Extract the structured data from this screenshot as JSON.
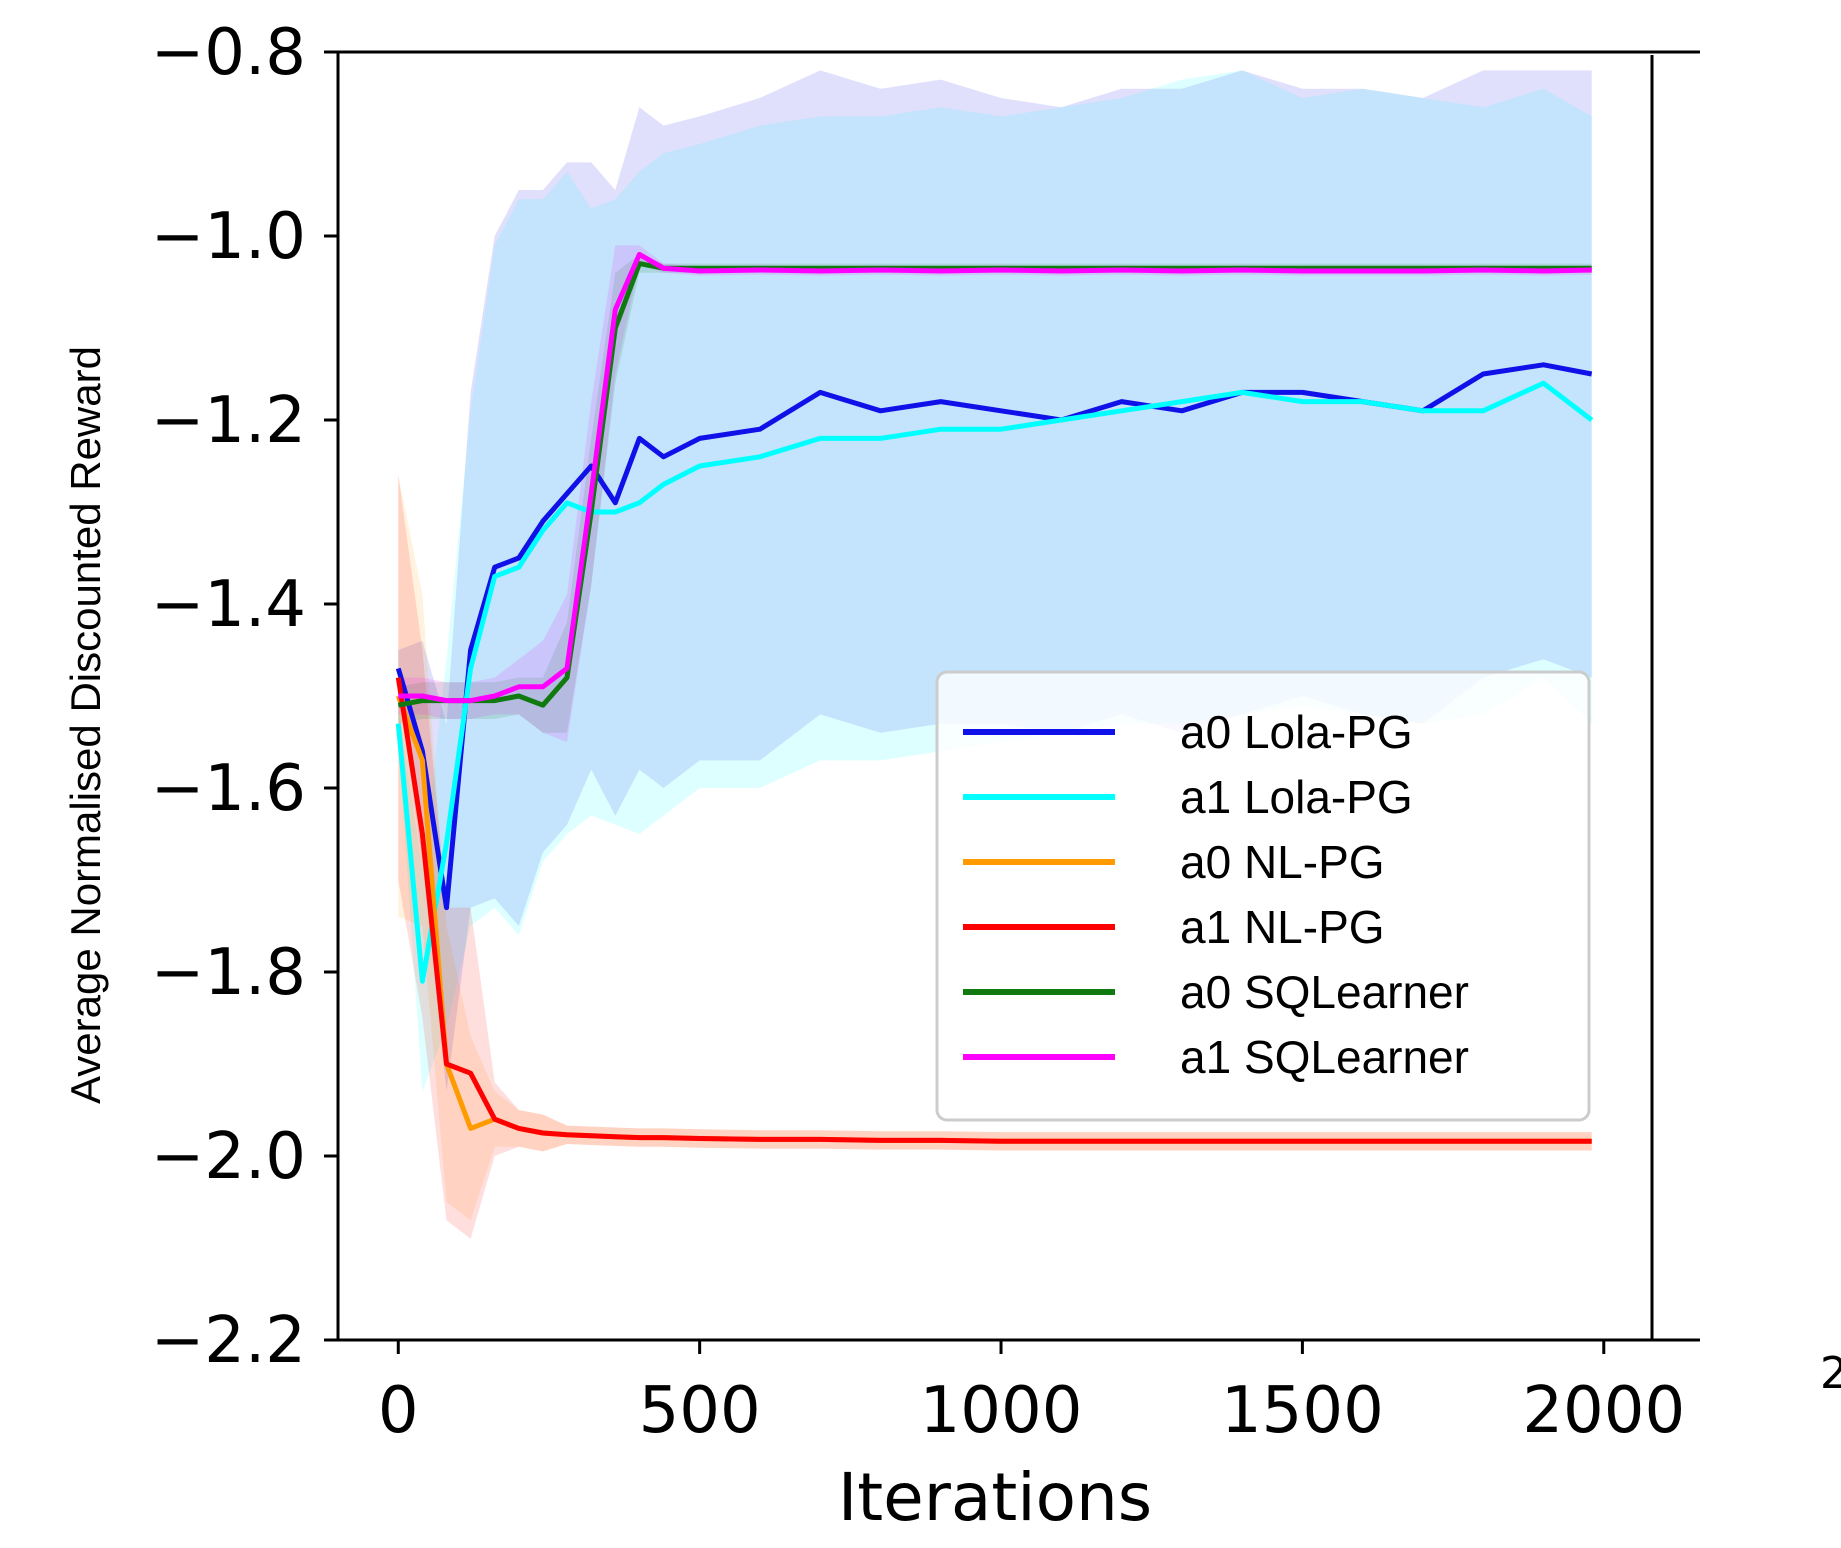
{
  "chart_data": {
    "type": "line",
    "title": "",
    "xlabel": "Iterations",
    "ylabel": "Average Normalised Discounted Reward",
    "xlim": [
      -100,
      2080
    ],
    "ylim": [
      -2.2,
      -0.8
    ],
    "xticks": [
      0,
      500,
      1000,
      1500,
      2000
    ],
    "xtick_labels": [
      "0",
      "500",
      "1000",
      "1500",
      "2000"
    ],
    "yticks": [
      -0.8,
      -1.0,
      -1.2,
      -1.4,
      -1.6,
      -1.8,
      -2.0,
      -2.2
    ],
    "ytick_labels": [
      "−0.8",
      "−1.0",
      "−1.2",
      "−1.4",
      "−1.6",
      "−1.8",
      "−2.0",
      "−2.2"
    ],
    "grid": false,
    "legend_position": "center-right",
    "stray_label": "2",
    "x": [
      0,
      40,
      80,
      120,
      160,
      200,
      240,
      280,
      320,
      360,
      400,
      440,
      500,
      600,
      700,
      800,
      900,
      1000,
      1100,
      1200,
      1300,
      1400,
      1500,
      1600,
      1700,
      1800,
      1900,
      1980
    ],
    "series": [
      {
        "name": "a0  Lola-PG",
        "color": "#1010e8",
        "values": [
          -1.47,
          -1.56,
          -1.73,
          -1.45,
          -1.36,
          -1.35,
          -1.31,
          -1.28,
          -1.25,
          -1.29,
          -1.22,
          -1.24,
          -1.22,
          -1.21,
          -1.17,
          -1.19,
          -1.18,
          -1.19,
          -1.2,
          -1.18,
          -1.19,
          -1.17,
          -1.17,
          -1.18,
          -1.19,
          -1.15,
          -1.14,
          -1.15
        ],
        "band": [
          0.02,
          0.12,
          0.2,
          0.28,
          0.36,
          0.4,
          0.36,
          0.36,
          0.33,
          0.34,
          0.36,
          0.36,
          0.35,
          0.36,
          0.35,
          0.35,
          0.35,
          0.34,
          0.34,
          0.34,
          0.35,
          0.35,
          0.33,
          0.34,
          0.34,
          0.33,
          0.32,
          0.33
        ]
      },
      {
        "name": "a1  Lola-PG",
        "color": "#00ffff",
        "values": [
          -1.53,
          -1.81,
          -1.66,
          -1.47,
          -1.37,
          -1.36,
          -1.32,
          -1.29,
          -1.3,
          -1.3,
          -1.29,
          -1.27,
          -1.25,
          -1.24,
          -1.22,
          -1.22,
          -1.21,
          -1.21,
          -1.2,
          -1.19,
          -1.18,
          -1.17,
          -1.18,
          -1.18,
          -1.19,
          -1.19,
          -1.16,
          -1.2
        ],
        "band": [
          0.02,
          0.12,
          0.2,
          0.28,
          0.36,
          0.4,
          0.36,
          0.36,
          0.33,
          0.34,
          0.36,
          0.36,
          0.35,
          0.36,
          0.35,
          0.35,
          0.35,
          0.34,
          0.34,
          0.34,
          0.35,
          0.35,
          0.33,
          0.34,
          0.34,
          0.33,
          0.32,
          0.33
        ]
      },
      {
        "name": "a0  NL-PG",
        "color": "#ff9a00",
        "values": [
          -1.5,
          -1.57,
          -1.9,
          -1.97,
          -1.96,
          -1.97,
          -1.975,
          -1.977,
          -1.978,
          -1.979,
          -1.98,
          -1.98,
          -1.981,
          -1.982,
          -1.982,
          -1.983,
          -1.983,
          -1.984,
          -1.984,
          -1.984,
          -1.984,
          -1.984,
          -1.984,
          -1.984,
          -1.984,
          -1.984,
          -1.984,
          -1.984
        ],
        "band": [
          0.24,
          0.18,
          0.15,
          0.1,
          0.03,
          0.02,
          0.02,
          0.01,
          0.01,
          0.01,
          0.01,
          0.01,
          0.01,
          0.01,
          0.01,
          0.01,
          0.01,
          0.01,
          0.01,
          0.01,
          0.01,
          0.01,
          0.01,
          0.01,
          0.01,
          0.01,
          0.01,
          0.01
        ]
      },
      {
        "name": "a1  NL-PG",
        "color": "#ff0000",
        "values": [
          -1.48,
          -1.65,
          -1.9,
          -1.91,
          -1.96,
          -1.97,
          -1.975,
          -1.977,
          -1.978,
          -1.979,
          -1.98,
          -1.98,
          -1.981,
          -1.982,
          -1.982,
          -1.983,
          -1.983,
          -1.984,
          -1.984,
          -1.984,
          -1.984,
          -1.984,
          -1.984,
          -1.984,
          -1.984,
          -1.984,
          -1.984,
          -1.984
        ],
        "band": [
          0.22,
          0.2,
          0.17,
          0.18,
          0.04,
          0.02,
          0.02,
          0.01,
          0.01,
          0.01,
          0.01,
          0.01,
          0.01,
          0.01,
          0.01,
          0.01,
          0.01,
          0.01,
          0.01,
          0.01,
          0.01,
          0.01,
          0.01,
          0.01,
          0.01,
          0.01,
          0.01,
          0.01
        ]
      },
      {
        "name": "a0  SQLearner",
        "color": "#107a10",
        "values": [
          -1.51,
          -1.505,
          -1.505,
          -1.505,
          -1.505,
          -1.5,
          -1.51,
          -1.48,
          -1.3,
          -1.1,
          -1.03,
          -1.035,
          -1.035,
          -1.035,
          -1.035,
          -1.035,
          -1.035,
          -1.035,
          -1.035,
          -1.035,
          -1.035,
          -1.035,
          -1.035,
          -1.035,
          -1.035,
          -1.035,
          -1.035,
          -1.035
        ],
        "band": [
          0.02,
          0.02,
          0.02,
          0.02,
          0.02,
          0.02,
          0.03,
          0.06,
          0.08,
          0.06,
          0.01,
          0.005,
          0.005,
          0.005,
          0.005,
          0.005,
          0.005,
          0.005,
          0.005,
          0.005,
          0.005,
          0.005,
          0.005,
          0.005,
          0.005,
          0.005,
          0.005,
          0.005
        ]
      },
      {
        "name": "a1  SQLearner",
        "color": "#ff00ff",
        "values": [
          -1.5,
          -1.5,
          -1.505,
          -1.505,
          -1.5,
          -1.49,
          -1.49,
          -1.47,
          -1.28,
          -1.08,
          -1.02,
          -1.035,
          -1.038,
          -1.037,
          -1.038,
          -1.037,
          -1.038,
          -1.037,
          -1.038,
          -1.037,
          -1.038,
          -1.037,
          -1.038,
          -1.038,
          -1.038,
          -1.037,
          -1.038,
          -1.037
        ],
        "band": [
          0.02,
          0.02,
          0.02,
          0.02,
          0.02,
          0.03,
          0.05,
          0.08,
          0.1,
          0.07,
          0.01,
          0.005,
          0.005,
          0.005,
          0.005,
          0.005,
          0.005,
          0.005,
          0.005,
          0.005,
          0.005,
          0.005,
          0.005,
          0.005,
          0.005,
          0.005,
          0.005,
          0.005
        ]
      }
    ]
  }
}
